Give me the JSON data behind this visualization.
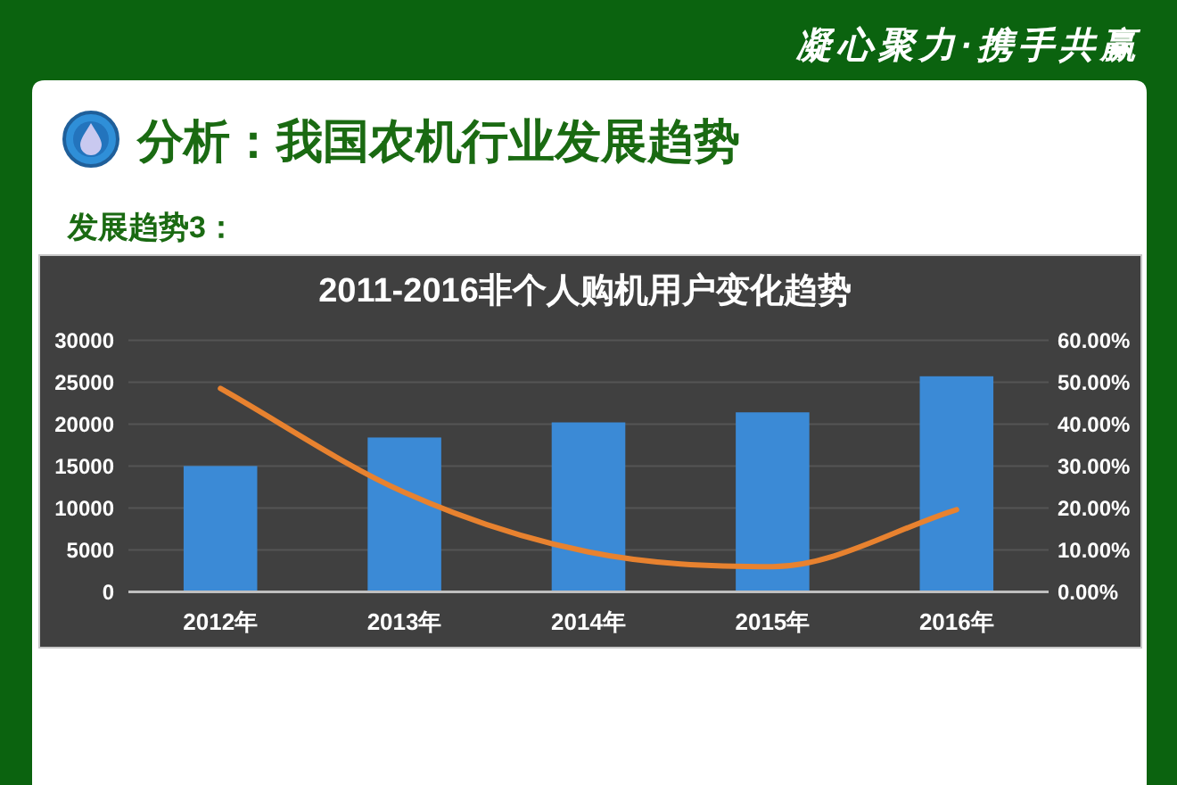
{
  "chart_data": {
    "type": "bar",
    "title": "2011-2016非个人购机用户变化趋势",
    "annotations": [
      "凝心聚力·携手共赢",
      "分析：我国农机行业发展趋势",
      "发展趋势3："
    ],
    "categories": [
      "2012年",
      "2013年",
      "2014年",
      "2015年",
      "2016年"
    ],
    "series": [
      {
        "color": "#3b8ad6",
        "values": [
          15000,
          18400,
          20200,
          21400,
          25700
        ]
      },
      {
        "type": "line",
        "axis": "y2",
        "color": "#e8822f",
        "values": [
          48.5,
          23.7,
          9.5,
          6,
          19.6
        ]
      }
    ],
    "ylim": [
      0,
      30000
    ],
    "yticks": [
      0,
      5000,
      10000,
      15000,
      20000,
      25000,
      30000
    ],
    "y2lim": [
      0,
      60
    ],
    "y2ticks": [
      {
        "value": 0,
        "label": "0.00%"
      },
      {
        "value": 10,
        "label": "10.00%"
      },
      {
        "value": 20,
        "label": "20.00%"
      },
      {
        "value": 30,
        "label": "30.00%"
      },
      {
        "value": 40,
        "label": "40.00%"
      },
      {
        "value": 50,
        "label": "50.00%"
      },
      {
        "value": 60,
        "label": "60.00%"
      }
    ],
    "grid": "y"
  }
}
